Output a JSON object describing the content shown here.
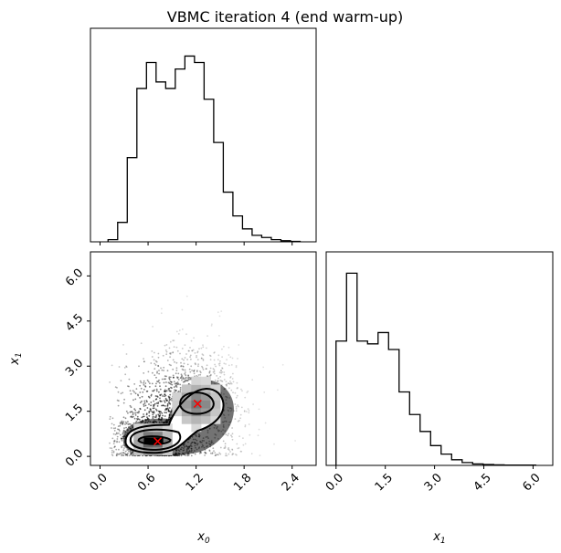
{
  "figure": {
    "title": "VBMC iteration 4 (end warm-up)"
  },
  "chart_data": [
    {
      "type": "histogram",
      "panel": "x0 marginal",
      "xlabel": "",
      "ylabel": "",
      "xlim": [
        -0.12,
        2.7
      ],
      "bin_edges": [
        0.1,
        0.22,
        0.34,
        0.46,
        0.58,
        0.7,
        0.82,
        0.94,
        1.06,
        1.18,
        1.3,
        1.42,
        1.54,
        1.66,
        1.78,
        1.9,
        2.02,
        2.14,
        2.26,
        2.38,
        2.5
      ],
      "counts": [
        0.01,
        0.09,
        0.39,
        0.71,
        0.83,
        0.74,
        0.71,
        0.8,
        0.86,
        0.83,
        0.66,
        0.46,
        0.23,
        0.12,
        0.06,
        0.03,
        0.02,
        0.01,
        0.005,
        0.002
      ]
    },
    {
      "type": "histogram",
      "panel": "x1 marginal",
      "xlabel": "x1",
      "xlim": [
        -0.3,
        6.6
      ],
      "xticks": [
        "0.0",
        "1.5",
        "3.0",
        "4.5",
        "6.0"
      ],
      "bin_edges": [
        0.0,
        0.32,
        0.64,
        0.96,
        1.28,
        1.6,
        1.92,
        2.24,
        2.56,
        2.88,
        3.2,
        3.52,
        3.84,
        4.16,
        4.48,
        4.8,
        5.12,
        5.44,
        5.76,
        6.08
      ],
      "counts": [
        0.44,
        0.68,
        0.44,
        0.43,
        0.47,
        0.41,
        0.26,
        0.18,
        0.12,
        0.07,
        0.04,
        0.02,
        0.01,
        0.005,
        0.003,
        0.002,
        0.001,
        0.001,
        0.001
      ]
    },
    {
      "type": "scatter",
      "panel": "x0 vs x1 joint (samples, 2D histogram, density contours)",
      "xlabel": "x0",
      "ylabel": "x1",
      "xlim": [
        -0.12,
        2.7
      ],
      "ylim": [
        -0.3,
        6.8
      ],
      "xticks": [
        "0.0",
        "0.6",
        "1.2",
        "1.8",
        "2.4"
      ],
      "yticks": [
        "0.0",
        "1.5",
        "3.0",
        "4.5",
        "6.0"
      ],
      "modes": [
        {
          "x0": 0.65,
          "x1": 0.52
        },
        {
          "x0": 1.22,
          "x1": 1.78
        }
      ],
      "markers": [
        {
          "symbol": "x",
          "color": "#ff0000",
          "x0": 0.72,
          "x1": 0.5
        },
        {
          "symbol": "x",
          "color": "#ff0000",
          "x0": 1.22,
          "x1": 1.75
        }
      ],
      "colors": {
        "points": "#000000",
        "markers": "#ff0000",
        "fill": "#ffffff"
      }
    }
  ]
}
